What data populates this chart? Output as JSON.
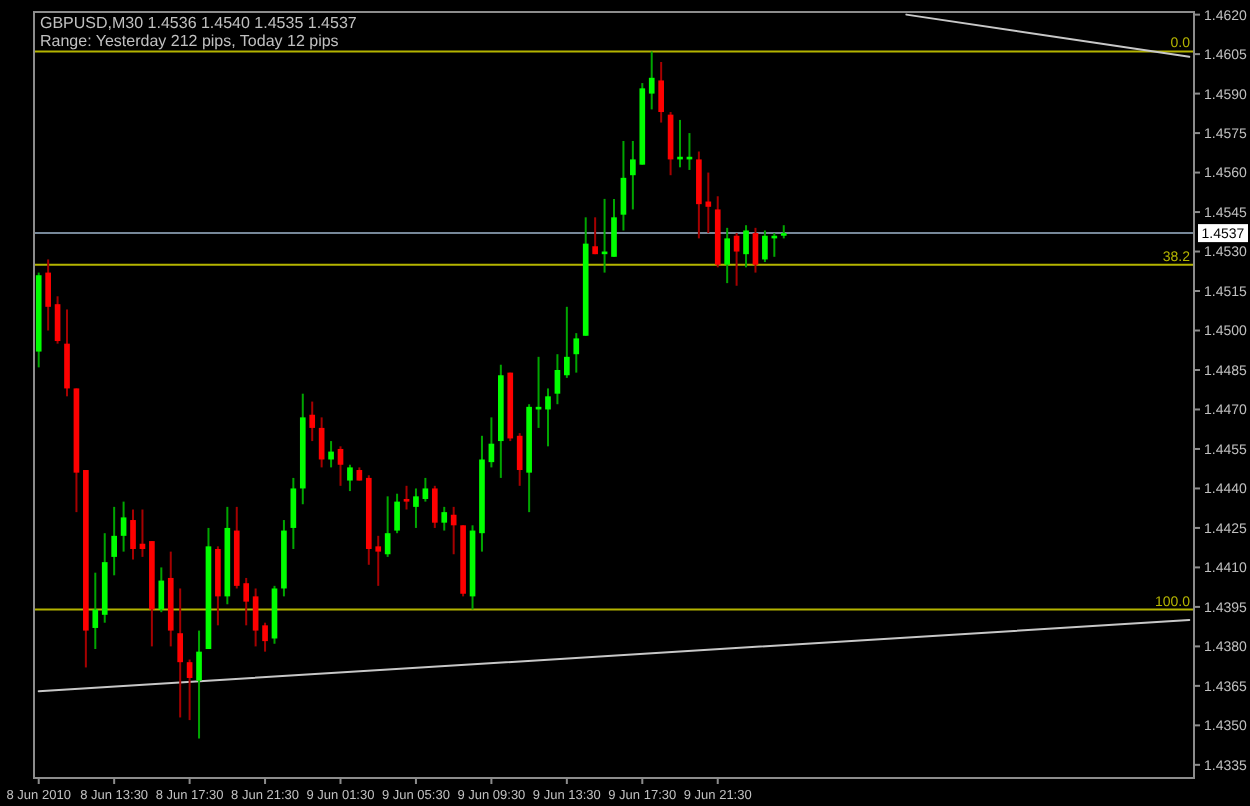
{
  "chart_data": {
    "type": "candlestick",
    "title": "GBPUSD,M30 1.4536 1.4540 1.4535 1.4537",
    "subtitle": "Range: Yesterday 212 pips, Today 12 pips",
    "x": [
      "2010-06-08T09:30",
      "2010-06-08T10:00",
      "2010-06-08T10:30",
      "2010-06-08T11:00",
      "2010-06-08T11:30",
      "2010-06-08T12:00",
      "2010-06-08T12:30",
      "2010-06-08T13:00",
      "2010-06-08T13:30",
      "2010-06-08T14:00",
      "2010-06-08T14:30",
      "2010-06-08T15:00",
      "2010-06-08T15:30",
      "2010-06-08T16:00",
      "2010-06-08T16:30",
      "2010-06-08T17:00",
      "2010-06-08T17:30",
      "2010-06-08T18:00",
      "2010-06-08T18:30",
      "2010-06-08T19:00",
      "2010-06-08T19:30",
      "2010-06-08T20:00",
      "2010-06-08T20:30",
      "2010-06-08T21:00",
      "2010-06-08T21:30",
      "2010-06-08T22:00",
      "2010-06-08T22:30",
      "2010-06-08T23:00",
      "2010-06-08T23:30",
      "2010-06-09T00:00",
      "2010-06-09T00:30",
      "2010-06-09T01:00",
      "2010-06-09T01:30",
      "2010-06-09T02:00",
      "2010-06-09T02:30",
      "2010-06-09T03:00",
      "2010-06-09T03:30",
      "2010-06-09T04:00",
      "2010-06-09T04:30",
      "2010-06-09T05:00",
      "2010-06-09T05:30",
      "2010-06-09T06:00",
      "2010-06-09T06:30",
      "2010-06-09T07:00",
      "2010-06-09T07:30",
      "2010-06-09T08:00",
      "2010-06-09T08:30",
      "2010-06-09T09:00",
      "2010-06-09T09:30",
      "2010-06-09T10:00",
      "2010-06-09T10:30",
      "2010-06-09T11:00",
      "2010-06-09T11:30",
      "2010-06-09T12:00",
      "2010-06-09T12:30",
      "2010-06-09T13:00",
      "2010-06-09T13:30",
      "2010-06-09T14:00",
      "2010-06-09T14:30",
      "2010-06-09T15:00",
      "2010-06-09T15:30",
      "2010-06-09T16:00",
      "2010-06-09T16:30",
      "2010-06-09T17:00",
      "2010-06-09T17:30",
      "2010-06-09T18:00",
      "2010-06-09T18:30",
      "2010-06-09T19:00",
      "2010-06-09T19:30",
      "2010-06-09T20:00",
      "2010-06-09T20:30",
      "2010-06-09T21:00",
      "2010-06-09T21:30",
      "2010-06-09T22:00",
      "2010-06-09T22:30",
      "2010-06-09T23:00",
      "2010-06-09T23:30",
      "2010-06-10T00:00",
      "2010-06-10T00:30",
      "2010-06-10T01:00"
    ],
    "ohlc": [
      [
        1.4492,
        1.4522,
        1.4486,
        1.4521
      ],
      [
        1.4522,
        1.4527,
        1.45,
        1.4509
      ],
      [
        1.451,
        1.4513,
        1.4495,
        1.4496
      ],
      [
        1.4495,
        1.4508,
        1.4475,
        1.4478
      ],
      [
        1.4478,
        1.4478,
        1.4431,
        1.4446
      ],
      [
        1.4447,
        1.4447,
        1.4372,
        1.4386
      ],
      [
        1.4387,
        1.4408,
        1.4379,
        1.4394
      ],
      [
        1.4392,
        1.4423,
        1.4389,
        1.4412
      ],
      [
        1.4414,
        1.4433,
        1.4407,
        1.4422
      ],
      [
        1.4422,
        1.4435,
        1.4416,
        1.4429
      ],
      [
        1.4428,
        1.4432,
        1.4413,
        1.4417
      ],
      [
        1.4419,
        1.4432,
        1.4414,
        1.4417
      ],
      [
        1.442,
        1.442,
        1.438,
        1.4394
      ],
      [
        1.4394,
        1.441,
        1.4393,
        1.4405
      ],
      [
        1.4406,
        1.4416,
        1.438,
        1.4386
      ],
      [
        1.4385,
        1.4402,
        1.4353,
        1.4374
      ],
      [
        1.4374,
        1.4375,
        1.4352,
        1.4368
      ],
      [
        1.4367,
        1.4386,
        1.4345,
        1.4378
      ],
      [
        1.4379,
        1.4425,
        1.4379,
        1.4418
      ],
      [
        1.4417,
        1.4418,
        1.4388,
        1.4399
      ],
      [
        1.4399,
        1.4433,
        1.4396,
        1.4425
      ],
      [
        1.4424,
        1.4433,
        1.4402,
        1.4403
      ],
      [
        1.4404,
        1.4406,
        1.4388,
        1.4397
      ],
      [
        1.4399,
        1.4402,
        1.438,
        1.4386
      ],
      [
        1.4388,
        1.4389,
        1.4378,
        1.4382
      ],
      [
        1.4383,
        1.4403,
        1.4381,
        1.4402
      ],
      [
        1.4402,
        1.4428,
        1.4399,
        1.4424
      ],
      [
        1.4425,
        1.4444,
        1.4417,
        1.444
      ],
      [
        1.444,
        1.4476,
        1.4434,
        1.4467
      ],
      [
        1.4468,
        1.4473,
        1.4458,
        1.4463
      ],
      [
        1.4463,
        1.4467,
        1.4448,
        1.4451
      ],
      [
        1.4451,
        1.4458,
        1.4448,
        1.4454
      ],
      [
        1.4455,
        1.4456,
        1.4441,
        1.4449
      ],
      [
        1.4443,
        1.4449,
        1.4439,
        1.4448
      ],
      [
        1.4447,
        1.4448,
        1.4443,
        1.4443
      ],
      [
        1.4444,
        1.4445,
        1.4411,
        1.4417
      ],
      [
        1.4418,
        1.4422,
        1.4403,
        1.4416
      ],
      [
        1.4415,
        1.4437,
        1.4414,
        1.4423
      ],
      [
        1.4424,
        1.4438,
        1.4423,
        1.4435
      ],
      [
        1.4436,
        1.4441,
        1.4432,
        1.4435
      ],
      [
        1.4433,
        1.444,
        1.4425,
        1.4437
      ],
      [
        1.4436,
        1.4444,
        1.4435,
        1.444
      ],
      [
        1.444,
        1.4441,
        1.4425,
        1.4427
      ],
      [
        1.4427,
        1.4433,
        1.4424,
        1.4431
      ],
      [
        1.443,
        1.4433,
        1.4415,
        1.4426
      ],
      [
        1.4426,
        1.4426,
        1.4399,
        1.44
      ],
      [
        1.4399,
        1.4426,
        1.4394,
        1.4424
      ],
      [
        1.4423,
        1.446,
        1.4416,
        1.4451
      ],
      [
        1.445,
        1.4467,
        1.4448,
        1.4457
      ],
      [
        1.4458,
        1.4487,
        1.4444,
        1.4483
      ],
      [
        1.4484,
        1.4484,
        1.4458,
        1.4459
      ],
      [
        1.446,
        1.4461,
        1.4441,
        1.4447
      ],
      [
        1.4446,
        1.4472,
        1.4431,
        1.4471
      ],
      [
        1.447,
        1.449,
        1.4463,
        1.4471
      ],
      [
        1.447,
        1.4478,
        1.4456,
        1.4475
      ],
      [
        1.4476,
        1.4491,
        1.4472,
        1.4485
      ],
      [
        1.4483,
        1.4509,
        1.4482,
        1.449
      ],
      [
        1.4491,
        1.4499,
        1.4484,
        1.4497
      ],
      [
        1.4498,
        1.4543,
        1.4498,
        1.4533
      ],
      [
        1.4532,
        1.4543,
        1.4529,
        1.4529
      ],
      [
        1.4529,
        1.455,
        1.4522,
        1.453
      ],
      [
        1.4528,
        1.455,
        1.4528,
        1.4543
      ],
      [
        1.4544,
        1.4572,
        1.4538,
        1.4558
      ],
      [
        1.4559,
        1.4572,
        1.4546,
        1.4565
      ],
      [
        1.4563,
        1.4594,
        1.4563,
        1.4592
      ],
      [
        1.459,
        1.4606,
        1.4584,
        1.4596
      ],
      [
        1.4595,
        1.4602,
        1.4579,
        1.4583
      ],
      [
        1.4582,
        1.4583,
        1.4559,
        1.4565
      ],
      [
        1.4565,
        1.458,
        1.4562,
        1.4566
      ],
      [
        1.4565,
        1.4575,
        1.4561,
        1.4566
      ],
      [
        1.4565,
        1.4568,
        1.4535,
        1.4548
      ],
      [
        1.4549,
        1.456,
        1.4537,
        1.4547
      ],
      [
        1.4546,
        1.4551,
        1.4524,
        1.4525
      ],
      [
        1.4525,
        1.4539,
        1.4518,
        1.4535
      ],
      [
        1.4536,
        1.4537,
        1.4517,
        1.453
      ],
      [
        1.4529,
        1.454,
        1.4524,
        1.4538
      ],
      [
        1.4537,
        1.4539,
        1.4522,
        1.4525
      ],
      [
        1.4527,
        1.4538,
        1.4526,
        1.4536
      ],
      [
        1.4535,
        1.4537,
        1.4528,
        1.4536
      ],
      [
        1.4536,
        1.454,
        1.4535,
        1.4537
      ]
    ],
    "colors": [
      "#00ff00",
      "#ff0000",
      "#ff0000",
      "#ff0000",
      "#ff0000",
      "#ff0000",
      "#00ff00",
      "#00ff00",
      "#00ff00",
      "#00ff00",
      "#ff0000",
      "#ff0000",
      "#ff0000",
      "#00ff00",
      "#ff0000",
      "#ff0000",
      "#ff0000",
      "#00ff00",
      "#00ff00",
      "#ff0000",
      "#00ff00",
      "#ff0000",
      "#ff0000",
      "#ff0000",
      "#ff0000",
      "#00ff00",
      "#00ff00",
      "#00ff00",
      "#00ff00",
      "#ff0000",
      "#ff0000",
      "#00ff00",
      "#ff0000",
      "#00ff00",
      "#ff0000",
      "#ff0000",
      "#ff0000",
      "#00ff00",
      "#00ff00",
      "#ff0000",
      "#00ff00",
      "#00ff00",
      "#ff0000",
      "#00ff00",
      "#ff0000",
      "#ff0000",
      "#00ff00",
      "#00ff00",
      "#00ff00",
      "#00ff00",
      "#ff0000",
      "#ff0000",
      "#00ff00",
      "#00ff00",
      "#00ff00",
      "#00ff00",
      "#00ff00",
      "#00ff00",
      "#00ff00",
      "#ff0000",
      "#00ff00",
      "#00ff00",
      "#00ff00",
      "#00ff00",
      "#00ff00",
      "#00ff00",
      "#ff0000",
      "#ff0000",
      "#00ff00",
      "#00ff00",
      "#ff0000",
      "#ff0000",
      "#ff0000",
      "#00ff00",
      "#ff0000",
      "#00ff00",
      "#ff0000",
      "#00ff00",
      "#00ff00",
      "#00ff00"
    ],
    "series": [
      {
        "type": "line",
        "x": [
          "2010-06-08T09:30",
          "2010-06-10T22:30"
        ],
        "values": [
          1.4363,
          1.439
        ],
        "color": "#c8c8c8"
      },
      {
        "type": "line",
        "x": [
          "2010-06-10T07:30",
          "2010-06-10T22:30"
        ],
        "values": [
          1.462,
          1.4604
        ],
        "color": "#c8c8c8"
      }
    ],
    "xlim": [
      "2010-06-08T09:15",
      "2010-06-10T22:45"
    ],
    "xticks": [
      {
        "value": "2010-06-08T09:30",
        "label": "8 Jun 2010"
      },
      {
        "value": "2010-06-08T13:30",
        "label": "8 Jun 13:30"
      },
      {
        "value": "2010-06-08T17:30",
        "label": "8 Jun 17:30"
      },
      {
        "value": "2010-06-08T21:30",
        "label": "8 Jun 21:30"
      },
      {
        "value": "2010-06-09T01:30",
        "label": "9 Jun 01:30"
      },
      {
        "value": "2010-06-09T05:30",
        "label": "9 Jun 05:30"
      },
      {
        "value": "2010-06-09T09:30",
        "label": "9 Jun 09:30"
      },
      {
        "value": "2010-06-09T13:30",
        "label": "9 Jun 13:30"
      },
      {
        "value": "2010-06-09T17:30",
        "label": "9 Jun 17:30"
      },
      {
        "value": "2010-06-09T21:30",
        "label": "9 Jun 21:30"
      }
    ],
    "ylim": [
      1.433,
      1.4621
    ],
    "yticks": [
      {
        "value": 1.462,
        "label": "1.4620"
      },
      1.4605,
      {
        "value": 1.459,
        "label": "1.4590"
      },
      1.4575,
      {
        "value": 1.456,
        "label": "1.4560"
      },
      1.4545,
      {
        "value": 1.453,
        "label": "1.4530"
      },
      1.4515,
      {
        "value": 1.45,
        "label": "1.4500"
      },
      1.4485,
      {
        "value": 1.447,
        "label": "1.4470"
      },
      1.4455,
      {
        "value": 1.444,
        "label": "1.4440"
      },
      1.4425,
      {
        "value": 1.441,
        "label": "1.4410"
      },
      1.4395,
      {
        "value": 1.438,
        "label": "1.4380"
      },
      1.4365,
      {
        "value": 1.435,
        "label": "1.4350"
      },
      1.4335
    ],
    "ref_lines": [
      {
        "axis": "y",
        "value": 1.4537,
        "label": "1.4537",
        "color": "#778899"
      },
      {
        "axis": "y",
        "value": 1.4606,
        "color": "#b4b400"
      },
      {
        "axis": "y",
        "value": 1.4525,
        "color": "#b4b400"
      },
      {
        "axis": "y",
        "value": 1.4394,
        "color": "#b4b400"
      }
    ],
    "annotations": [
      {
        "text": "0.0",
        "x": "2010-06-10T22:45",
        "y": 1.4606
      },
      {
        "text": "38.2",
        "x": "2010-06-10T22:45",
        "y": 1.4525
      },
      {
        "text": "100.0",
        "x": "2010-06-10T22:45",
        "y": 1.4394
      }
    ]
  }
}
